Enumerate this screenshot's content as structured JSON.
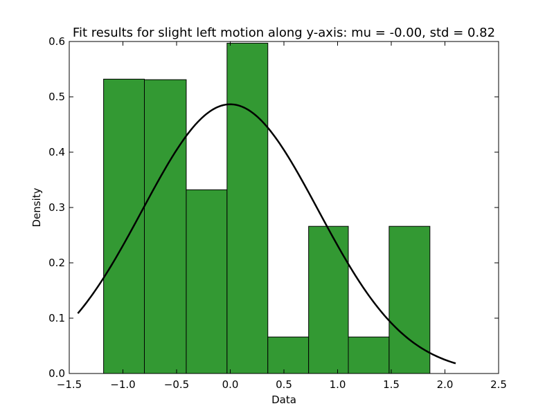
{
  "chart_data": {
    "type": "bar",
    "title": "Fit results for slight left motion along y-axis: mu = -0.00,  std = 0.82",
    "xlabel": "Data",
    "ylabel": "Density",
    "xlim": [
      -1.5,
      2.5
    ],
    "ylim": [
      0.0,
      0.6
    ],
    "x_ticks": [
      -1.5,
      -1.0,
      -0.5,
      0.0,
      0.5,
      1.0,
      1.5,
      2.0,
      2.5
    ],
    "x_tick_labels": [
      "−1.5",
      "−1.0",
      "−0.5",
      "0.0",
      "0.5",
      "1.0",
      "1.5",
      "2.0",
      "2.5"
    ],
    "y_ticks": [
      0.0,
      0.1,
      0.2,
      0.3,
      0.4,
      0.5,
      0.6
    ],
    "y_tick_labels": [
      "0.0",
      "0.1",
      "0.2",
      "0.3",
      "0.4",
      "0.5",
      "0.6"
    ],
    "grid": false,
    "histogram": {
      "bin_edges": [
        -1.18,
        -0.8,
        -0.41,
        -0.03,
        0.35,
        0.73,
        1.1,
        1.48,
        1.86
      ],
      "densities": [
        0.532,
        0.531,
        0.332,
        0.597,
        0.066,
        0.266,
        0.066,
        0.266
      ],
      "color": "#339933",
      "edge_color": "#000000"
    },
    "fit_curve": {
      "distribution": "normal",
      "mu": -0.0,
      "std": 0.82,
      "x_range": [
        -1.42,
        2.1
      ],
      "color": "#000000"
    }
  }
}
